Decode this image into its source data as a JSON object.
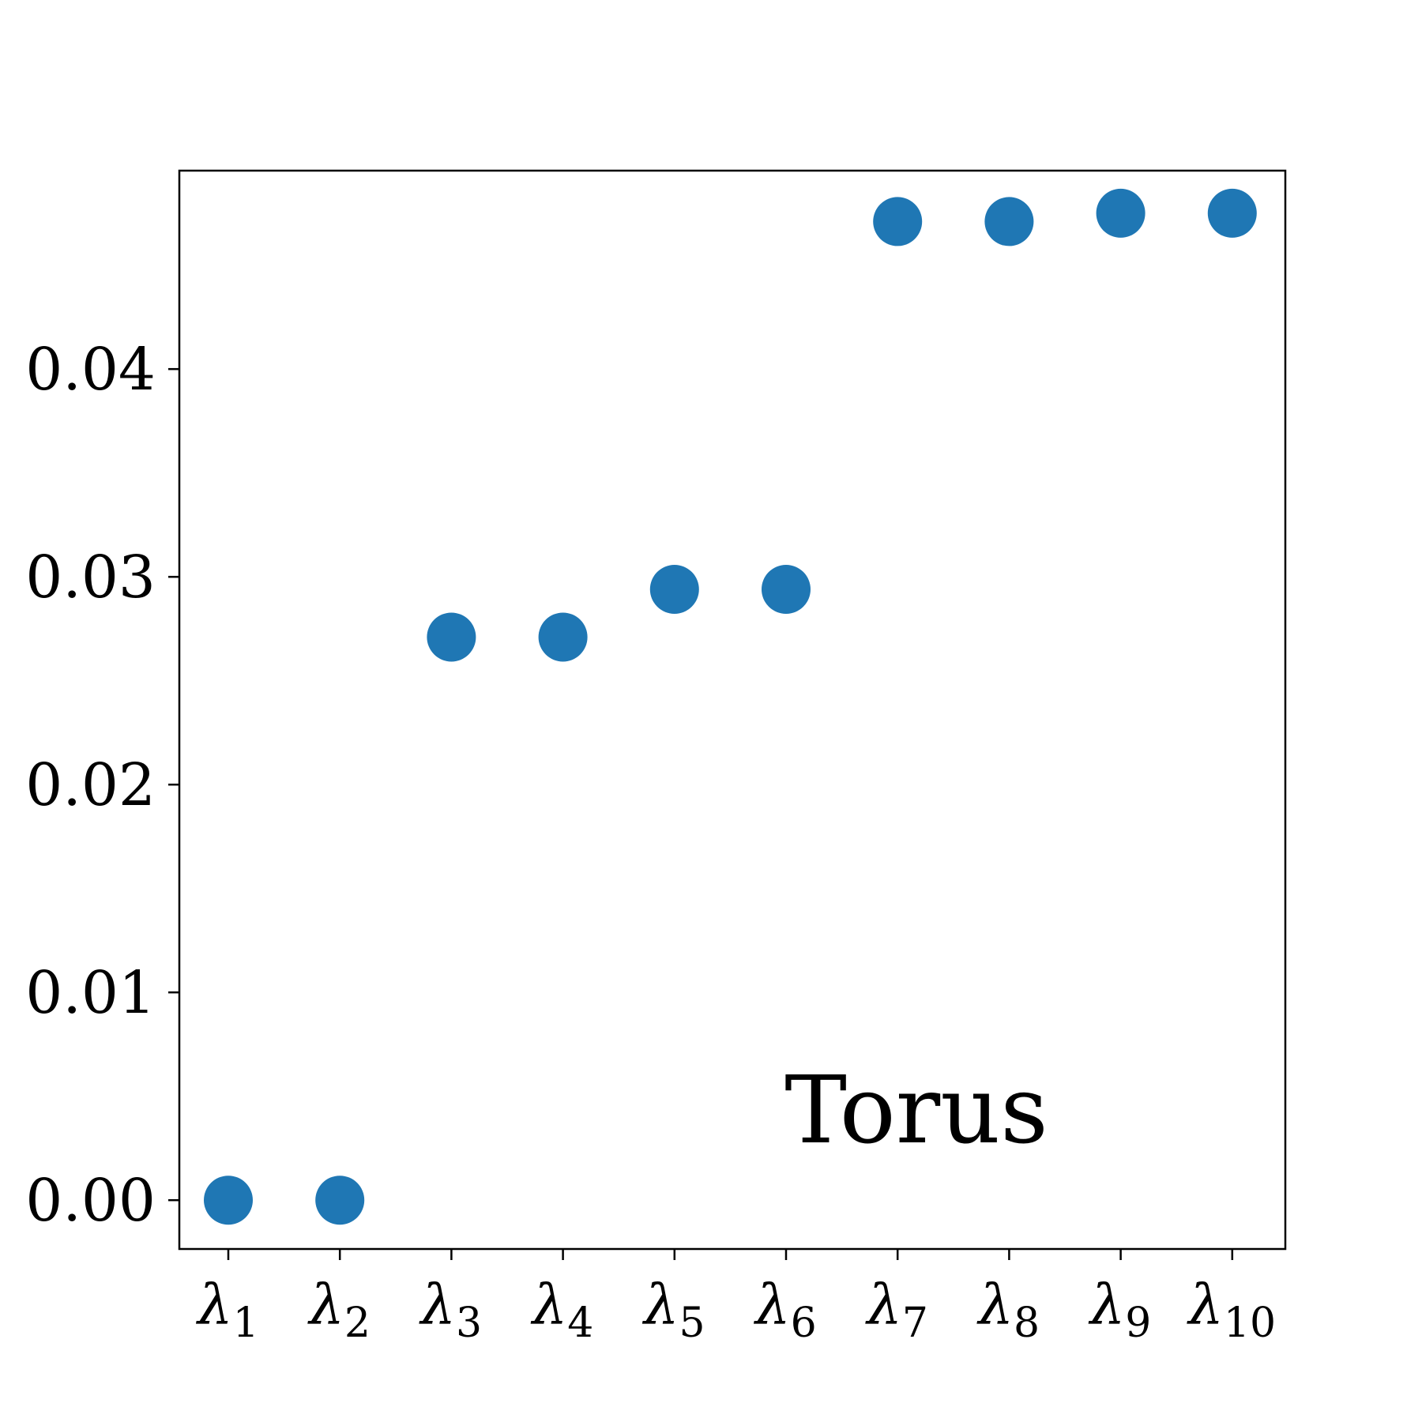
{
  "chart_data": {
    "type": "scatter",
    "categories": [
      "λ1",
      "λ2",
      "λ3",
      "λ4",
      "λ5",
      "λ6",
      "λ7",
      "λ8",
      "λ9",
      "λ10"
    ],
    "x_tick_labels": [
      {
        "symbol": "λ",
        "sub": "1"
      },
      {
        "symbol": "λ",
        "sub": "2"
      },
      {
        "symbol": "λ",
        "sub": "3"
      },
      {
        "symbol": "λ",
        "sub": "4"
      },
      {
        "symbol": "λ",
        "sub": "5"
      },
      {
        "symbol": "λ",
        "sub": "6"
      },
      {
        "symbol": "λ",
        "sub": "7"
      },
      {
        "symbol": "λ",
        "sub": "8"
      },
      {
        "symbol": "λ",
        "sub": "9"
      },
      {
        "symbol": "λ",
        "sub": "10"
      }
    ],
    "values": [
      0.0,
      0.0,
      0.0271,
      0.0271,
      0.0294,
      0.0294,
      0.0471,
      0.0471,
      0.0475,
      0.0475
    ],
    "yticks": [
      0.0,
      0.01,
      0.02,
      0.03,
      0.04
    ],
    "ytick_labels": [
      "0.00",
      "0.01",
      "0.02",
      "0.03",
      "0.04"
    ],
    "ylim": [
      -0.00235,
      0.04955
    ],
    "title": "",
    "xlabel": "",
    "ylabel": "",
    "annotation": "Torus",
    "grid": false,
    "marker_color": "#1f77b4"
  }
}
